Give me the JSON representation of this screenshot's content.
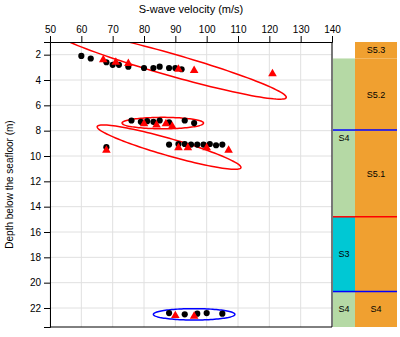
{
  "chart_data": {
    "type": "scatter",
    "xlabel": "S-wave velocity (m/s)",
    "ylabel": "Depth below the seafloor (m)",
    "xlim": [
      50,
      140
    ],
    "ylim": [
      23.5,
      1.0
    ],
    "xticks": [
      50,
      60,
      70,
      80,
      90,
      100,
      110,
      120,
      130,
      140
    ],
    "yticks": [
      2,
      4,
      6,
      8,
      10,
      12,
      14,
      16,
      18,
      20,
      22
    ],
    "grid": true,
    "series": [
      {
        "marker": "circle",
        "color": "black",
        "x": [
          60,
          63,
          68,
          70,
          72,
          75,
          80,
          83,
          85,
          88,
          90,
          92,
          76,
          79,
          81,
          83,
          85,
          88,
          93,
          96,
          68,
          88,
          91,
          93,
          95,
          97,
          99,
          101,
          103,
          105,
          88,
          93,
          97,
          100,
          105
        ],
        "values": [
          2.1,
          2.3,
          2.6,
          2.8,
          2.8,
          2.95,
          3.05,
          3.05,
          2.95,
          3.05,
          3.05,
          3.15,
          7.2,
          7.3,
          7.25,
          7.3,
          7.2,
          7.35,
          7.2,
          7.4,
          9.3,
          9.1,
          9.05,
          9.05,
          9.1,
          9.1,
          9.1,
          9.05,
          9.15,
          9.1,
          22.4,
          22.5,
          22.45,
          22.4,
          22.45
        ]
      },
      {
        "marker": "triangle",
        "color": "red",
        "x": [
          67,
          71,
          75,
          91,
          96,
          121,
          80,
          84,
          87,
          89,
          68,
          91,
          94,
          100,
          107,
          90,
          96
        ],
        "values": [
          2.4,
          2.6,
          2.7,
          3.15,
          3.25,
          3.5,
          7.45,
          7.55,
          7.45,
          7.65,
          9.55,
          9.35,
          9.35,
          9.35,
          9.55,
          22.6,
          22.65
        ]
      }
    ],
    "ellipses": [
      {
        "cx": 88,
        "cy": 2.75,
        "width": 75,
        "height": 1.8,
        "angle": 4,
        "color": "red"
      },
      {
        "cx": 86,
        "cy": 7.4,
        "width": 26,
        "height": 0.9,
        "angle": 0,
        "color": "red"
      },
      {
        "cx": 88,
        "cy": 9.3,
        "width": 46,
        "height": 1.4,
        "angle": 4,
        "color": "red"
      },
      {
        "cx": 96,
        "cy": 22.5,
        "width": 26,
        "height": 0.9,
        "angle": 0,
        "color": "blue"
      }
    ],
    "sidebar_left": [
      {
        "label": "S4",
        "ymin": 2.3,
        "ymax": 14.8,
        "color": "#b5d9a5"
      },
      {
        "label": "S3",
        "ymin": 14.8,
        "ymax": 20.7,
        "color": "#00c8d4"
      },
      {
        "label": "S4",
        "ymin": 20.7,
        "ymax": 23.5,
        "color": "#b5d9a5"
      }
    ],
    "sidebar_right": [
      {
        "label": "S5.3",
        "ymin": 1.0,
        "ymax": 2.3,
        "color": "#f0a030"
      },
      {
        "label": "S5.2",
        "ymin": 2.3,
        "ymax": 8.0,
        "color": "#f0a030"
      },
      {
        "label": "S5.1",
        "ymin": 8.0,
        "ymax": 14.8,
        "color": "#f0a030"
      },
      {
        "label": null,
        "ymin": 14.8,
        "ymax": 20.7,
        "color": "#f0a030"
      },
      {
        "label": "S4",
        "ymin": 20.7,
        "ymax": 23.5,
        "color": "#f0a030"
      }
    ],
    "boundary_lines": [
      {
        "y": 7.95,
        "color": "blue"
      },
      {
        "y": 20.7,
        "color": "blue"
      },
      {
        "y": 14.8,
        "color": "red"
      }
    ]
  }
}
